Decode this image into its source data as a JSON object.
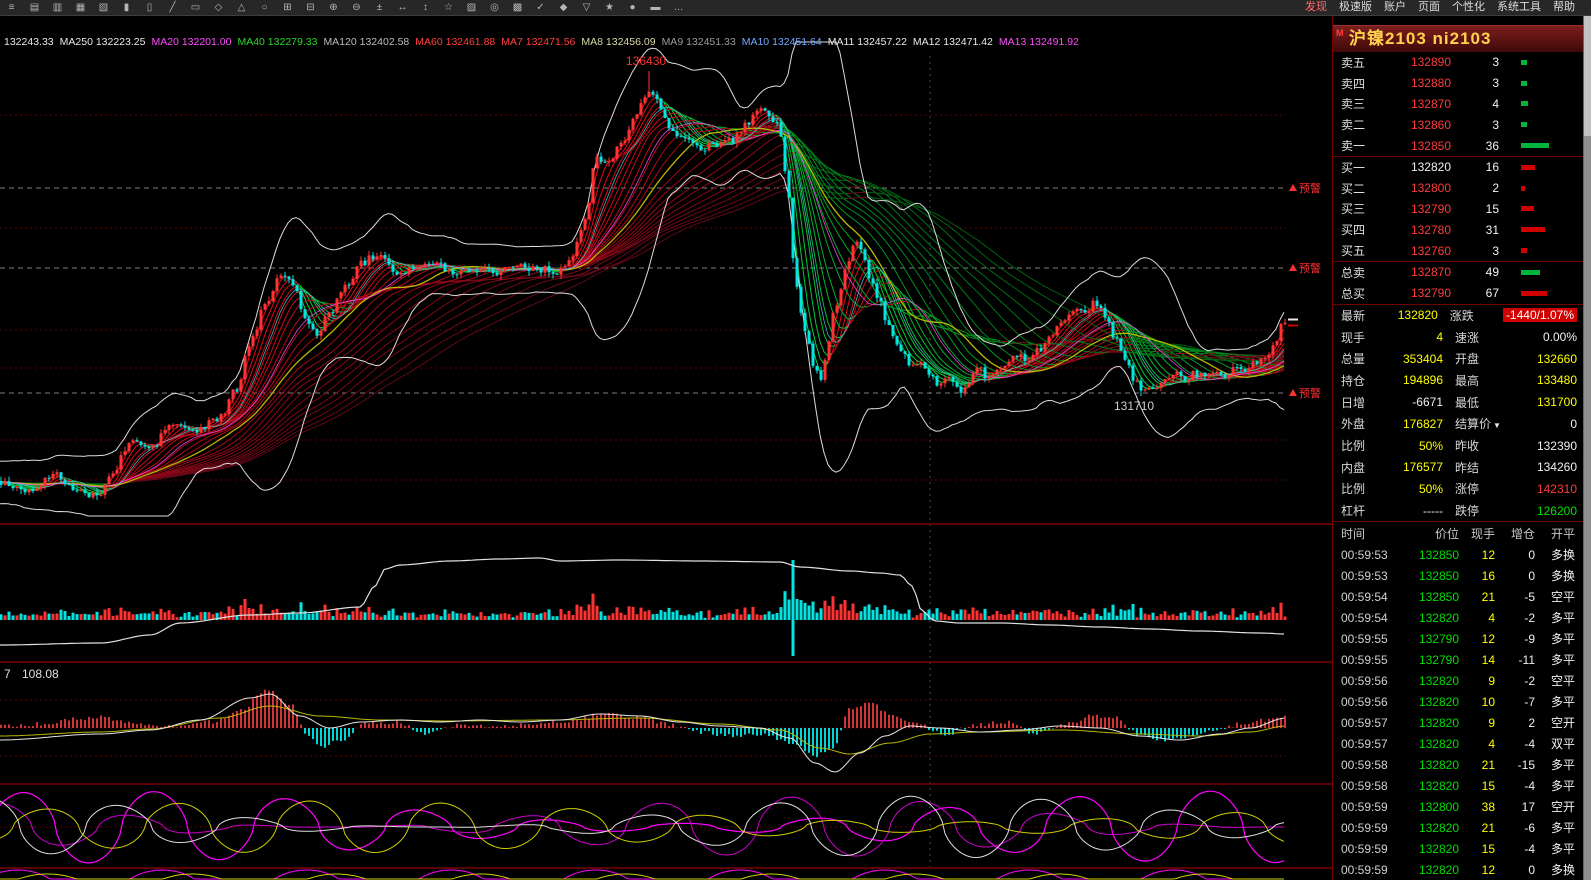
{
  "toolbar": {
    "icons": [
      {
        "name": "menu-icon",
        "glyph": "≡"
      },
      {
        "name": "new-layout-icon",
        "glyph": "▤"
      },
      {
        "name": "open-layout-icon",
        "glyph": "▥"
      },
      {
        "name": "save-layout-icon",
        "glyph": "▦"
      },
      {
        "name": "page-grid-icon",
        "glyph": "▧"
      },
      {
        "name": "candlestick-icon",
        "glyph": "▮"
      },
      {
        "name": "ohlc-bar-icon",
        "glyph": "▯"
      },
      {
        "name": "trendline-icon",
        "glyph": "╱"
      },
      {
        "name": "rectangle-draw-icon",
        "glyph": "▭"
      },
      {
        "name": "diamond-draw-icon",
        "glyph": "◇"
      },
      {
        "name": "triangle-draw-icon",
        "glyph": "△"
      },
      {
        "name": "circle-draw-icon",
        "glyph": "○"
      },
      {
        "name": "add-indicator-icon",
        "glyph": "⊞"
      },
      {
        "name": "remove-indicator-icon",
        "glyph": "⊟"
      },
      {
        "name": "zoom-in-icon",
        "glyph": "⊕"
      },
      {
        "name": "zoom-out-icon",
        "glyph": "⊖"
      },
      {
        "name": "measure-icon",
        "glyph": "±"
      },
      {
        "name": "pan-horizontal-icon",
        "glyph": "↔"
      },
      {
        "name": "pan-vertical-icon",
        "glyph": "↕"
      },
      {
        "name": "favorite-icon",
        "glyph": "☆"
      },
      {
        "name": "pattern-icon",
        "glyph": "▨"
      },
      {
        "name": "target-icon",
        "glyph": "◎"
      },
      {
        "name": "grid-settings-icon",
        "glyph": "▩"
      },
      {
        "name": "confirm-icon",
        "glyph": "✓"
      },
      {
        "name": "marker-icon",
        "glyph": "◆"
      },
      {
        "name": "down-marker-icon",
        "glyph": "▽"
      },
      {
        "name": "star-icon",
        "glyph": "★"
      },
      {
        "name": "dot-marker-icon",
        "glyph": "●"
      },
      {
        "name": "volume-profile-icon",
        "glyph": "▬"
      },
      {
        "name": "more-icon",
        "glyph": "…"
      }
    ],
    "right_items": [
      {
        "label": "发现",
        "color": "#ff6a6a"
      },
      {
        "label": "极速版",
        "color": "#dddddd"
      },
      {
        "label": "账户",
        "color": "#dddddd"
      },
      {
        "label": "页面",
        "color": "#dddddd"
      },
      {
        "label": "个性化",
        "color": "#dddddd"
      },
      {
        "label": "系统工具",
        "color": "#dddddd"
      },
      {
        "label": "帮助",
        "color": "#dddddd"
      }
    ]
  },
  "ma_bar": {
    "leading_value": "132243.33",
    "items": [
      {
        "label": "MA250",
        "value": "132223.25",
        "color": "#e8e8e8"
      },
      {
        "label": "MA20",
        "value": "132201.00",
        "color": "#ff4dff"
      },
      {
        "label": "MA40",
        "value": "132279.33",
        "color": "#2bd42b"
      },
      {
        "label": "MA120",
        "value": "132402.58",
        "color": "#bdbdbd"
      },
      {
        "label": "MA60",
        "value": "132461.88",
        "color": "#ff4040"
      },
      {
        "label": "MA7",
        "value": "132471.56",
        "color": "#ff4040"
      },
      {
        "label": "MA8",
        "value": "132456.09",
        "color": "#d8d8a8"
      },
      {
        "label": "MA9",
        "value": "132451.33",
        "color": "#9a9a9a"
      },
      {
        "label": "MA10",
        "value": "132451.64",
        "color": "#6fa8ff"
      },
      {
        "label": "MA11",
        "value": "132457.22",
        "color": "#e8e8e8"
      },
      {
        "label": "MA12",
        "value": "132471.42",
        "color": "#e8e8e8"
      },
      {
        "label": "MA13",
        "value": "132491.92",
        "color": "#ff4dff"
      }
    ]
  },
  "chart": {
    "peak_label": "136430",
    "trough_label": "131710",
    "alert_label": "预警",
    "macd_param": "7",
    "macd_value": "108.08",
    "up_color": "#ff3232",
    "down_color": "#00e4e4"
  },
  "panel": {
    "m_flag": "M",
    "title": "沪镍2103 ni2103",
    "orderbook": [
      {
        "label": "卖五",
        "price": "132890",
        "qty": "3",
        "price_color": "red",
        "bar_color": "green",
        "bar": 6
      },
      {
        "label": "卖四",
        "price": "132880",
        "qty": "3",
        "price_color": "red",
        "bar_color": "green",
        "bar": 6
      },
      {
        "label": "卖三",
        "price": "132870",
        "qty": "4",
        "price_color": "red",
        "bar_color": "green",
        "bar": 7
      },
      {
        "label": "卖二",
        "price": "132860",
        "qty": "3",
        "price_color": "red",
        "bar_color": "green",
        "bar": 6
      },
      {
        "label": "卖一",
        "price": "132850",
        "qty": "36",
        "price_color": "red",
        "bar_color": "green",
        "bar": 28
      },
      {
        "label": "买一",
        "price": "132820",
        "qty": "16",
        "price_color": "white",
        "bar_color": "red",
        "bar": 14
      },
      {
        "label": "买二",
        "price": "132800",
        "qty": "2",
        "price_color": "red",
        "bar_color": "red",
        "bar": 4
      },
      {
        "label": "买三",
        "price": "132790",
        "qty": "15",
        "price_color": "red",
        "bar_color": "red",
        "bar": 13
      },
      {
        "label": "买四",
        "price": "132780",
        "qty": "31",
        "price_color": "red",
        "bar_color": "red",
        "bar": 24
      },
      {
        "label": "买五",
        "price": "132760",
        "qty": "3",
        "price_color": "red",
        "bar_color": "red",
        "bar": 6
      }
    ],
    "totals": [
      {
        "label": "总卖",
        "price": "132870",
        "qty": "49",
        "price_color": "red",
        "bar_color": "green",
        "bar": 19
      },
      {
        "label": "总买",
        "price": "132790",
        "qty": "67",
        "price_color": "red",
        "bar_color": "red",
        "bar": 26
      }
    ],
    "stats": [
      {
        "ll": "最新",
        "lv": "132820",
        "lc": "yellow",
        "rl": "涨跌",
        "rv": "-1440/1.07%",
        "rc": "white",
        "hl": true
      },
      {
        "ll": "现手",
        "lv": "4",
        "lc": "yellow",
        "rl": "速涨",
        "rv": "0.00%",
        "rc": "white"
      },
      {
        "ll": "总量",
        "lv": "353404",
        "lc": "yellow",
        "rl": "开盘",
        "rv": "132660",
        "rc": "yellow"
      },
      {
        "ll": "持仓",
        "lv": "194896",
        "lc": "yellow",
        "rl": "最高",
        "rv": "133480",
        "rc": "yellow"
      },
      {
        "ll": "日增",
        "lv": "-6671",
        "lc": "white",
        "rl": "最低",
        "rv": "131700",
        "rc": "yellow"
      },
      {
        "ll": "外盘",
        "lv": "176827",
        "lc": "yellow",
        "rl": "结算价",
        "rv": "0",
        "rc": "white",
        "dd": true
      },
      {
        "ll": "比例",
        "lv": "50%",
        "lc": "yellow",
        "rl": "昨收",
        "rv": "132390",
        "rc": "white"
      },
      {
        "ll": "内盘",
        "lv": "176577",
        "lc": "yellow",
        "rl": "昨结",
        "rv": "134260",
        "rc": "white"
      },
      {
        "ll": "比例",
        "lv": "50%",
        "lc": "yellow",
        "rl": "涨停",
        "rv": "142310",
        "rc": "red"
      },
      {
        "ll": "杠杆",
        "lv": "-----",
        "lc": "white",
        "rl": "跌停",
        "rv": "126200",
        "rc": "green"
      }
    ],
    "trades": {
      "headers": [
        "时间",
        "价位",
        "现手",
        "增仓",
        "开平"
      ],
      "rows": [
        [
          "00:59:53",
          "132850",
          "12",
          "0",
          "多换"
        ],
        [
          "00:59:53",
          "132850",
          "16",
          "0",
          "多换"
        ],
        [
          "00:59:54",
          "132850",
          "21",
          "-5",
          "空平"
        ],
        [
          "00:59:54",
          "132820",
          "4",
          "-2",
          "多平"
        ],
        [
          "00:59:55",
          "132790",
          "12",
          "-9",
          "多平"
        ],
        [
          "00:59:55",
          "132790",
          "14",
          "-11",
          "多平"
        ],
        [
          "00:59:56",
          "132820",
          "9",
          "-2",
          "空平"
        ],
        [
          "00:59:56",
          "132820",
          "10",
          "-7",
          "多平"
        ],
        [
          "00:59:57",
          "132820",
          "9",
          "2",
          "空开"
        ],
        [
          "00:59:57",
          "132820",
          "4",
          "-4",
          "双平"
        ],
        [
          "00:59:58",
          "132820",
          "21",
          "-15",
          "多平"
        ],
        [
          "00:59:58",
          "132820",
          "15",
          "-4",
          "多平"
        ],
        [
          "00:59:59",
          "132800",
          "38",
          "17",
          "空开"
        ],
        [
          "00:59:59",
          "132820",
          "21",
          "-6",
          "多平"
        ],
        [
          "00:59:59",
          "132820",
          "15",
          "-4",
          "多平"
        ],
        [
          "00:59:59",
          "132820",
          "12",
          "0",
          "多换"
        ]
      ]
    }
  }
}
